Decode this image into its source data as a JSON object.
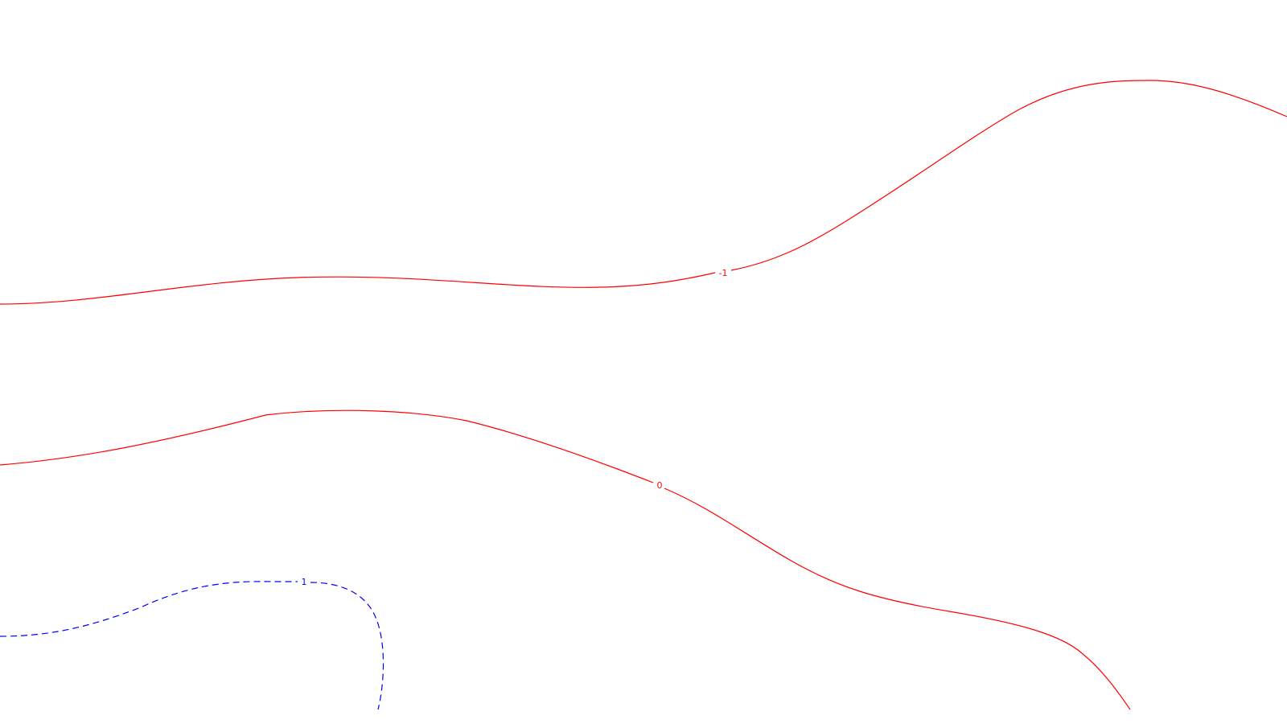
{
  "chart_data": {
    "type": "contour",
    "title": "",
    "xlabel": "",
    "ylabel": "",
    "grid": false,
    "colors": {
      "positive": "#ff0000",
      "negative": "#0000ff",
      "background": "#ffffff"
    },
    "contours": [
      {
        "level": -1,
        "label": "-1",
        "color": "#ff0000",
        "style": "solid"
      },
      {
        "level": 0,
        "label": "0",
        "color": "#ff0000",
        "style": "solid"
      },
      {
        "level": 1,
        "label": "1",
        "color": "#0000ff",
        "style": "dashed"
      }
    ]
  }
}
